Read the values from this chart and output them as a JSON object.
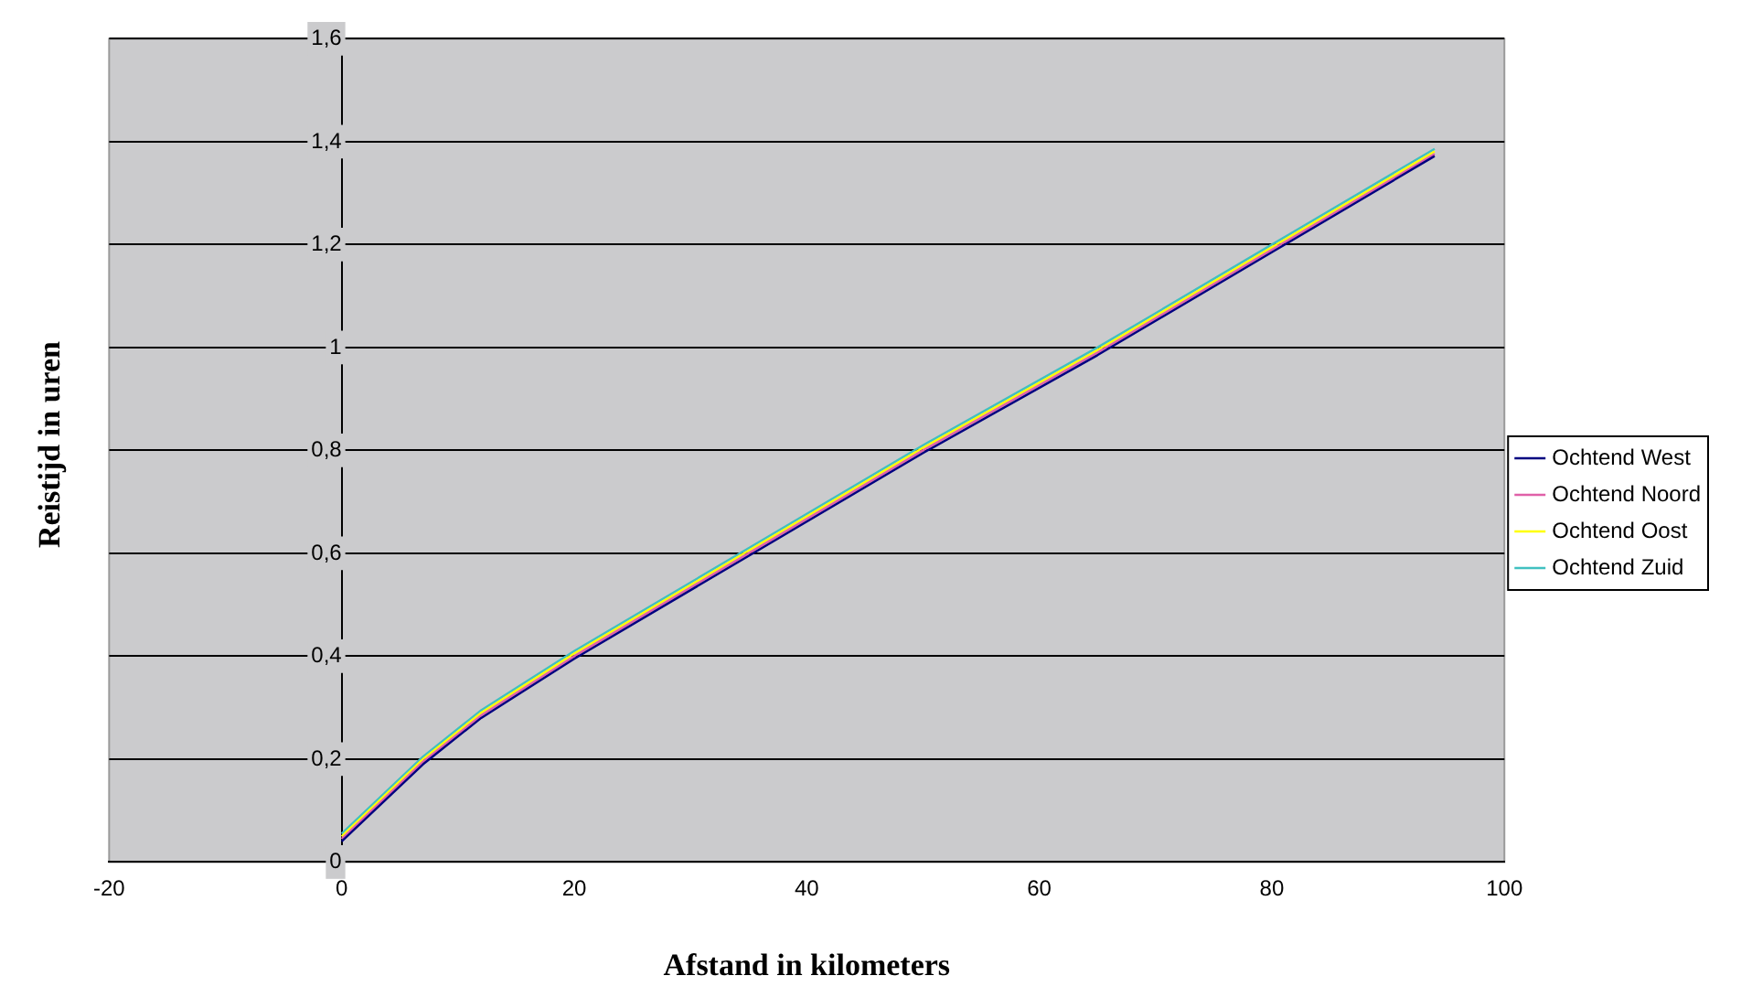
{
  "chart_data": {
    "type": "line",
    "xlabel": "Afstand in kilometers",
    "ylabel": "Reistijd in uren",
    "xlim": [
      -20,
      100
    ],
    "xticks": [
      -20,
      0,
      20,
      40,
      60,
      80,
      100
    ],
    "ylim": [
      0,
      1.6
    ],
    "yticks": [
      {
        "value": 0,
        "label": "0"
      },
      {
        "value": 0.2,
        "label": "0,2"
      },
      {
        "value": 0.4,
        "label": "0,4"
      },
      {
        "value": 0.6,
        "label": "0,6"
      },
      {
        "value": 0.8,
        "label": "0,8"
      },
      {
        "value": 1,
        "label": "1"
      },
      {
        "value": 1.2,
        "label": "1,2"
      },
      {
        "value": 1.4,
        "label": "1,4"
      },
      {
        "value": 1.6,
        "label": "1,6"
      }
    ],
    "grid": "y",
    "legend": "right",
    "marker": "none",
    "line_style": "solid",
    "x": [
      0,
      7,
      12,
      20,
      35,
      50,
      65,
      80,
      94
    ],
    "series": [
      {
        "name": "Ochtend West",
        "color": "#000080",
        "values": [
          0.04,
          0.19,
          0.28,
          0.395,
          0.595,
          0.795,
          0.985,
          1.185,
          1.372
        ]
      },
      {
        "name": "Ochtend Noord",
        "color": "#e060a8",
        "values": [
          0.045,
          0.195,
          0.285,
          0.4,
          0.6,
          0.8,
          0.99,
          1.19,
          1.376
        ]
      },
      {
        "name": "Ochtend Oost",
        "color": "#ffff00",
        "values": [
          0.05,
          0.2,
          0.29,
          0.405,
          0.605,
          0.805,
          0.995,
          1.195,
          1.381
        ]
      },
      {
        "name": "Ochtend Zuid",
        "color": "#40c0c0",
        "values": [
          0.055,
          0.205,
          0.295,
          0.41,
          0.61,
          0.81,
          1.0,
          1.2,
          1.386
        ]
      }
    ]
  }
}
